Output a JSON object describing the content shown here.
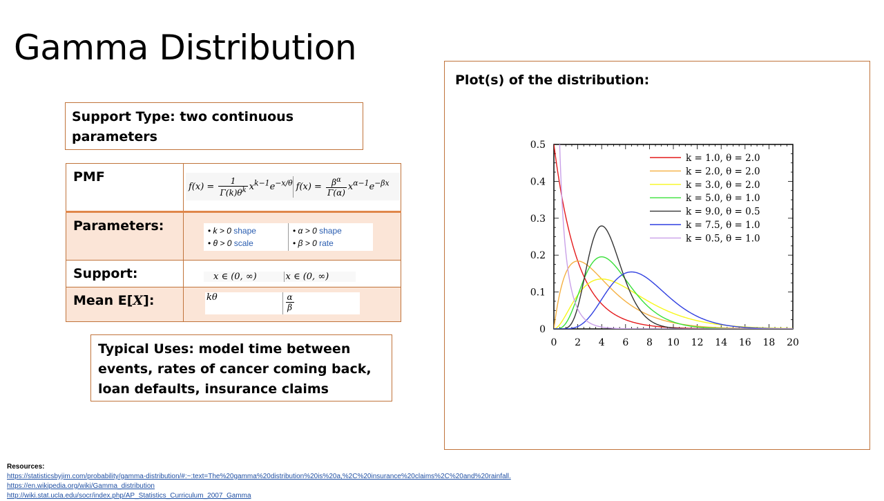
{
  "slide": {
    "title": "Gamma Distribution",
    "support_type": "Support Type: two continuous parameters",
    "typical_uses": "Typical Uses: model time between events, rates of cancer coming back, loan defaults, insurance claims",
    "plot_heading": "Plot(s) of the distribution:"
  },
  "table": {
    "pmf_label": "PMF",
    "parameters_label": "Parameters:",
    "support_label": "Support:",
    "mean_label": "Mean E[",
    "mean_label_x": "X",
    "mean_label_end": "]:",
    "params_left": [
      "k > 0",
      "shape",
      "θ > 0",
      "scale"
    ],
    "params_right": [
      "α > 0",
      "shape",
      "β > 0",
      "rate"
    ],
    "support_left": "x ∈ (0, ∞)",
    "support_right": "x ∈ (0, ∞)",
    "mean_left": "kθ",
    "mean_right_num": "α",
    "mean_right_den": "β"
  },
  "resources": {
    "title": "Resources:",
    "links": [
      "https://statisticsbyjim.com/probability/gamma-distribution/#:~:text=The%20gamma%20distribution%20is%20a,%2C%20insurance%20claims%2C%20and%20rainfall.",
      "https://en.wikipedia.org/wiki/Gamma_distribution",
      "http://wiki.stat.ucla.edu/socr/index.php/AP_Statistics_Curriculum_2007_Gamma"
    ]
  },
  "chart_data": {
    "type": "line",
    "title": "",
    "xlabel": "",
    "ylabel": "",
    "xlim": [
      0,
      20
    ],
    "ylim": [
      0,
      0.5
    ],
    "x_ticks": [
      "0",
      "2",
      "4",
      "6",
      "8",
      "10",
      "12",
      "14",
      "16",
      "18",
      "20"
    ],
    "y_ticks": [
      "0",
      "0.1",
      "0.2",
      "0.3",
      "0.4",
      "0.5"
    ],
    "legend_position": "top-right",
    "series": [
      {
        "name": "k = 1.0, θ = 2.0",
        "k": 1.0,
        "theta": 2.0,
        "color": "#e41a1c"
      },
      {
        "name": "k = 2.0, θ = 2.0",
        "k": 2.0,
        "theta": 2.0,
        "color": "#f5b041"
      },
      {
        "name": "k = 3.0, θ = 2.0",
        "k": 3.0,
        "theta": 2.0,
        "color": "#f7f71b"
      },
      {
        "name": "k = 5.0, θ = 1.0",
        "k": 5.0,
        "theta": 1.0,
        "color": "#38e038"
      },
      {
        "name": "k = 9.0, θ = 0.5",
        "k": 9.0,
        "theta": 0.5,
        "color": "#333333"
      },
      {
        "name": "k = 7.5, θ = 1.0",
        "k": 7.5,
        "theta": 1.0,
        "color": "#2f3fe0"
      },
      {
        "name": "k = 0.5, θ = 1.0",
        "k": 0.5,
        "theta": 1.0,
        "color": "#c9a0e8"
      }
    ]
  }
}
